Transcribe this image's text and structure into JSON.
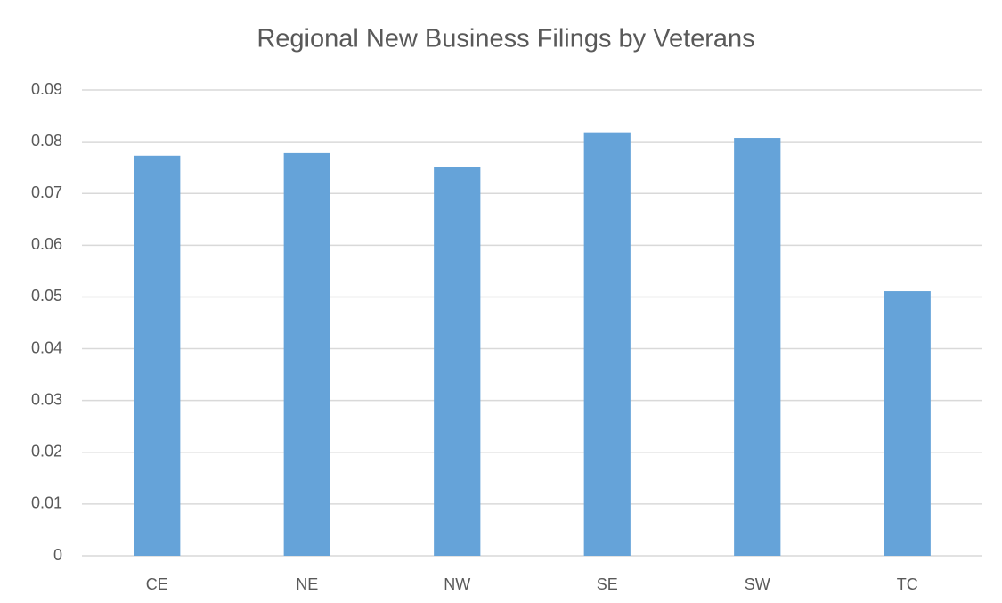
{
  "chart_data": {
    "type": "bar",
    "title": "Regional New Business Filings by Veterans",
    "categories": [
      "CE",
      "NE",
      "NW",
      "SE",
      "SW",
      "TC"
    ],
    "values": [
      0.0773,
      0.0778,
      0.0752,
      0.0818,
      0.0807,
      0.0511
    ],
    "color": "#65a3d9",
    "ylim": [
      0,
      0.09
    ],
    "yticks": [
      0,
      0.01,
      0.02,
      0.03,
      0.04,
      0.05,
      0.06,
      0.07,
      0.08,
      0.09
    ],
    "grid": true
  }
}
